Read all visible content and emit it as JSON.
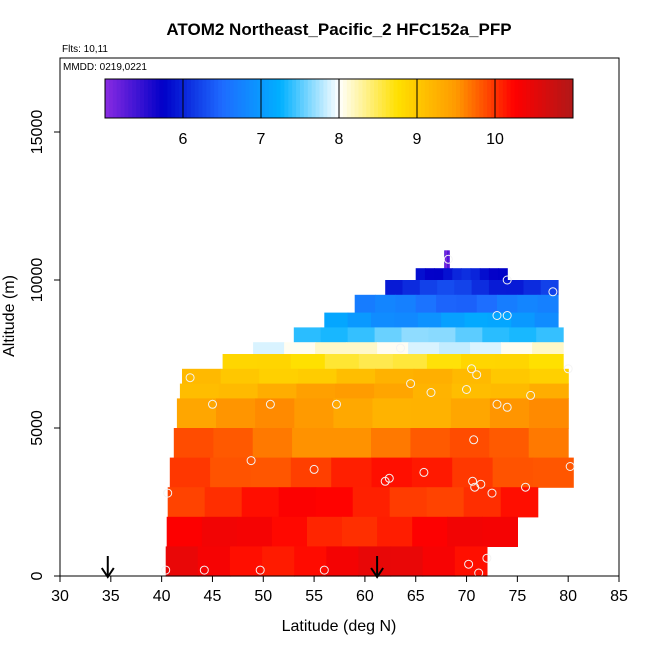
{
  "chart_data": {
    "type": "heatmap",
    "title": "ATOM2 Northeast_Pacific_2 HFC152a_PFP",
    "subtitle_flights": "Flts: 10,11",
    "subtitle_dates": "MMDD: 0219,0221",
    "xlabel": "Latitude (deg N)",
    "ylabel": "Altitude (m)",
    "xlim": [
      30,
      85
    ],
    "ylim": [
      0,
      17500
    ],
    "x_ticks": [
      "30",
      "35",
      "40",
      "45",
      "50",
      "55",
      "60",
      "65",
      "70",
      "75",
      "80",
      "85"
    ],
    "y_ticks": [
      "0",
      "5000",
      "10000",
      "15000"
    ],
    "colorbar": {
      "range": [
        5,
        11
      ],
      "ticks": [
        "6",
        "7",
        "8",
        "9",
        "10"
      ],
      "colors": [
        "#8a2be2",
        "#0000c8",
        "#1e6bff",
        "#00b0ff",
        "#ffffff",
        "#ffe000",
        "#ff9a00",
        "#ff0000",
        "#b01818"
      ]
    },
    "grid": false,
    "field_rows": [
      {
        "alt": [
          10400,
          11000
        ],
        "x": [
          67.8,
          68.3
        ],
        "value": 5.2
      },
      {
        "alt": [
          10000,
          10400
        ],
        "x": [
          65,
          74
        ],
        "value": 5.9
      },
      {
        "alt": [
          9500,
          10000
        ],
        "x": [
          62,
          79
        ],
        "value": 6.1
      },
      {
        "alt": [
          8900,
          9500
        ],
        "x": [
          59,
          79
        ],
        "value": 6.6
      },
      {
        "alt": [
          8400,
          8900
        ],
        "x": [
          56,
          79
        ],
        "value": 7.0
      },
      {
        "alt": [
          7900,
          8400
        ],
        "x": [
          53,
          79.5
        ],
        "value": 7.5
      },
      {
        "alt": [
          7500,
          7900
        ],
        "x": [
          49,
          79.5
        ],
        "value": 8.0
      },
      {
        "alt": [
          7000,
          7500
        ],
        "x": [
          46,
          79.5
        ],
        "value": 8.7
      },
      {
        "alt": [
          6500,
          7000
        ],
        "x": [
          42,
          80
        ],
        "value": 9.1
      },
      {
        "alt": [
          6000,
          6500
        ],
        "x": [
          41.8,
          80
        ],
        "value": 9.3
      },
      {
        "alt": [
          5000,
          6000
        ],
        "x": [
          41.5,
          80
        ],
        "value": 9.4
      },
      {
        "alt": [
          4000,
          5000
        ],
        "x": [
          41.2,
          80
        ],
        "value": 9.7
      },
      {
        "alt": [
          3000,
          4000
        ],
        "x": [
          40.8,
          80.5
        ],
        "value": 10.0
      },
      {
        "alt": [
          2000,
          3000
        ],
        "x": [
          40.6,
          77
        ],
        "value": 10.1
      },
      {
        "alt": [
          1000,
          2000
        ],
        "x": [
          40.5,
          75
        ],
        "value": 10.2
      },
      {
        "alt": [
          0,
          1000
        ],
        "x": [
          40.4,
          72
        ],
        "value": 10.3
      }
    ],
    "points": [
      {
        "lat": 68.2,
        "alt": 10700
      },
      {
        "lat": 74,
        "alt": 10000
      },
      {
        "lat": 78.5,
        "alt": 9600
      },
      {
        "lat": 73,
        "alt": 8800
      },
      {
        "lat": 74,
        "alt": 8800
      },
      {
        "lat": 63.5,
        "alt": 7700
      },
      {
        "lat": 70.5,
        "alt": 7000
      },
      {
        "lat": 71,
        "alt": 6800
      },
      {
        "lat": 80,
        "alt": 7000
      },
      {
        "lat": 42.8,
        "alt": 6700
      },
      {
        "lat": 64.5,
        "alt": 6500
      },
      {
        "lat": 66.5,
        "alt": 6200
      },
      {
        "lat": 70,
        "alt": 6300
      },
      {
        "lat": 76.3,
        "alt": 6100
      },
      {
        "lat": 45,
        "alt": 5800
      },
      {
        "lat": 50.7,
        "alt": 5800
      },
      {
        "lat": 57.2,
        "alt": 5800
      },
      {
        "lat": 73,
        "alt": 5800
      },
      {
        "lat": 74,
        "alt": 5700
      },
      {
        "lat": 70.7,
        "alt": 4600
      },
      {
        "lat": 48.8,
        "alt": 3900
      },
      {
        "lat": 55,
        "alt": 3600
      },
      {
        "lat": 65.8,
        "alt": 3500
      },
      {
        "lat": 80.2,
        "alt": 3700
      },
      {
        "lat": 62,
        "alt": 3200
      },
      {
        "lat": 62.4,
        "alt": 3300
      },
      {
        "lat": 70.6,
        "alt": 3200
      },
      {
        "lat": 70.8,
        "alt": 3000
      },
      {
        "lat": 71.4,
        "alt": 3100
      },
      {
        "lat": 75.8,
        "alt": 3000
      },
      {
        "lat": 40.6,
        "alt": 2800
      },
      {
        "lat": 72.5,
        "alt": 2800
      },
      {
        "lat": 72,
        "alt": 600
      },
      {
        "lat": 70.2,
        "alt": 400
      },
      {
        "lat": 40.4,
        "alt": 200
      },
      {
        "lat": 44.2,
        "alt": 200
      },
      {
        "lat": 49.7,
        "alt": 200
      },
      {
        "lat": 56,
        "alt": 200
      },
      {
        "lat": 71.2,
        "alt": 100
      }
    ],
    "arrows": [
      34.7,
      61.2
    ]
  }
}
